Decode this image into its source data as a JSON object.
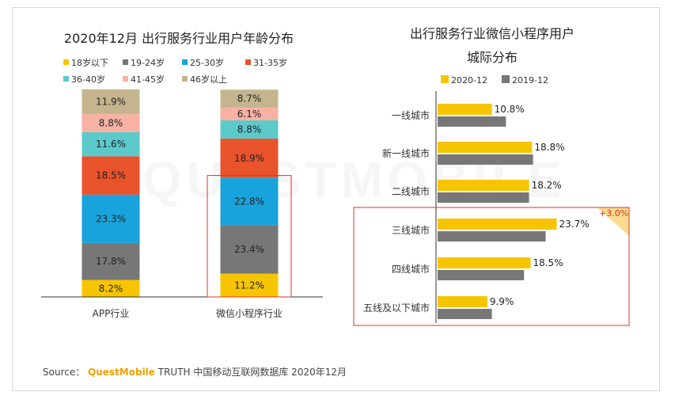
{
  "source": {
    "prefix": "Source： ",
    "brand": "QuestMobile",
    "suffix": " TRUTH 中国移动互联网数据库 2020年12月"
  },
  "watermark": "QUESTMOBILE",
  "chart_data": [
    {
      "type": "bar",
      "stacked": true,
      "title": "2020年12月 出行服务行业用户年龄分布",
      "categories": [
        "APP行业",
        "微信小程序行业"
      ],
      "legend_placement": "top",
      "series": [
        {
          "name": "18岁以下",
          "color": "#f7c500",
          "values": [
            8.2,
            11.2
          ]
        },
        {
          "name": "19-24岁",
          "color": "#777777",
          "values": [
            17.8,
            23.4
          ]
        },
        {
          "name": "25-30岁",
          "color": "#19a3dc",
          "values": [
            23.3,
            22.8
          ]
        },
        {
          "name": "31-35岁",
          "color": "#e8532c",
          "values": [
            18.5,
            18.9
          ]
        },
        {
          "name": "36-40岁",
          "color": "#5cc9cb",
          "values": [
            11.6,
            8.8
          ]
        },
        {
          "name": "41-45岁",
          "color": "#f7b2a4",
          "values": [
            8.8,
            6.1
          ]
        },
        {
          "name": "46岁以上",
          "color": "#c4b58e",
          "values": [
            11.9,
            8.7
          ]
        }
      ],
      "value_suffix": "%",
      "highlight": {
        "category": "微信小程序行业",
        "from_series": "19-24岁",
        "to_series": "25-30岁",
        "color": "#e0312c"
      }
    },
    {
      "type": "bar",
      "orientation": "horizontal",
      "title": "出行服务行业微信小程序用户城际分布",
      "title_lines": [
        "出行服务行业微信小程序用户",
        "城际分布"
      ],
      "categories": [
        "一线城市",
        "新一线城市",
        "二线城市",
        "三线城市",
        "四线城市",
        "五线及以下城市"
      ],
      "legend_placement": "top",
      "series": [
        {
          "name": "2020-12",
          "color": "#f7c500",
          "values": [
            10.8,
            18.8,
            18.2,
            23.7,
            18.5,
            9.9
          ]
        },
        {
          "name": "2019-12",
          "color": "#777777",
          "values": [
            null,
            null,
            null,
            null,
            null,
            null
          ]
        }
      ],
      "value_suffix": "%",
      "annotation": {
        "category": "三线城市",
        "text": "+3.0%",
        "color": "#e0312c"
      },
      "highlight": {
        "from_category": "三线城市",
        "to_category": "五线及以下城市",
        "color": "#e0312c"
      }
    }
  ]
}
